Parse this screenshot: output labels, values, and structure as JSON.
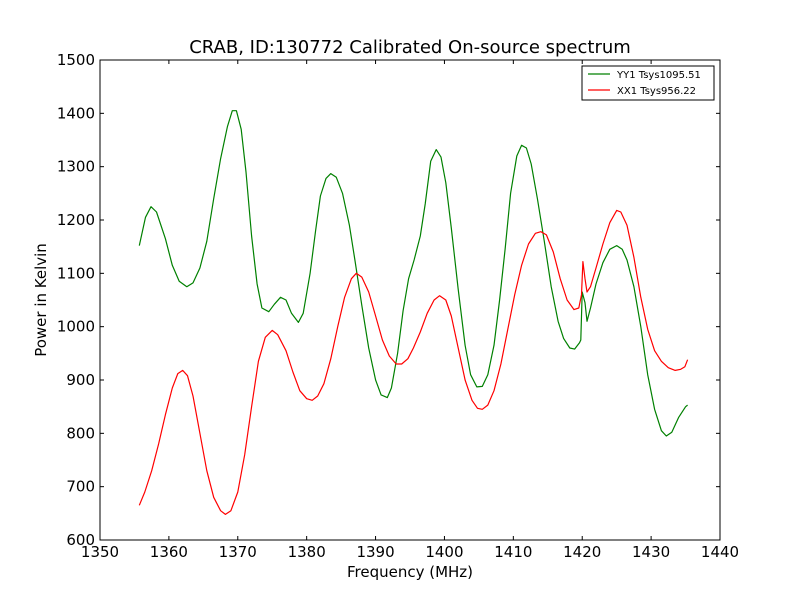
{
  "chart_data": {
    "type": "line",
    "title": "CRAB, ID:130772 Calibrated On-source spectrum",
    "xlabel": "Frequency (MHz)",
    "ylabel": "Power in Kelvin",
    "xlim": [
      1350,
      1440
    ],
    "ylim": [
      600,
      1500
    ],
    "xticks": [
      1350,
      1360,
      1370,
      1380,
      1390,
      1400,
      1410,
      1420,
      1430,
      1440
    ],
    "yticks": [
      600,
      700,
      800,
      900,
      1000,
      1100,
      1200,
      1300,
      1400,
      1500
    ],
    "grid": false,
    "legend_position": "top-right",
    "series": [
      {
        "name": "YY1 Tsys1095.51",
        "color": "#008000",
        "points": [
          [
            1355.7,
            1152
          ],
          [
            1356.6,
            1205
          ],
          [
            1357.4,
            1225
          ],
          [
            1358.2,
            1215
          ],
          [
            1359.5,
            1165
          ],
          [
            1360.5,
            1115
          ],
          [
            1361.5,
            1085
          ],
          [
            1362.6,
            1075
          ],
          [
            1363.5,
            1082
          ],
          [
            1364.5,
            1110
          ],
          [
            1365.5,
            1160
          ],
          [
            1366.5,
            1240
          ],
          [
            1367.5,
            1315
          ],
          [
            1368.5,
            1375
          ],
          [
            1369.2,
            1405
          ],
          [
            1369.8,
            1405
          ],
          [
            1370.5,
            1370
          ],
          [
            1371.2,
            1290
          ],
          [
            1372.0,
            1170
          ],
          [
            1372.8,
            1080
          ],
          [
            1373.5,
            1035
          ],
          [
            1374.5,
            1028
          ],
          [
            1375.3,
            1042
          ],
          [
            1376.2,
            1055
          ],
          [
            1377.0,
            1050
          ],
          [
            1377.8,
            1025
          ],
          [
            1378.8,
            1008
          ],
          [
            1379.5,
            1025
          ],
          [
            1380.5,
            1100
          ],
          [
            1381.3,
            1180
          ],
          [
            1382.0,
            1245
          ],
          [
            1382.8,
            1278
          ],
          [
            1383.5,
            1287
          ],
          [
            1384.3,
            1280
          ],
          [
            1385.2,
            1250
          ],
          [
            1386.2,
            1190
          ],
          [
            1387.0,
            1125
          ],
          [
            1388.0,
            1040
          ],
          [
            1389.0,
            960
          ],
          [
            1390.0,
            900
          ],
          [
            1390.8,
            872
          ],
          [
            1391.7,
            867
          ],
          [
            1392.3,
            885
          ],
          [
            1393.2,
            950
          ],
          [
            1394.0,
            1030
          ],
          [
            1394.8,
            1090
          ],
          [
            1395.6,
            1125
          ],
          [
            1396.5,
            1170
          ],
          [
            1397.2,
            1230
          ],
          [
            1398.0,
            1310
          ],
          [
            1398.8,
            1332
          ],
          [
            1399.5,
            1318
          ],
          [
            1400.2,
            1270
          ],
          [
            1401.0,
            1185
          ],
          [
            1402.0,
            1070
          ],
          [
            1403.0,
            965
          ],
          [
            1403.8,
            910
          ],
          [
            1404.7,
            887
          ],
          [
            1405.5,
            888
          ],
          [
            1406.3,
            910
          ],
          [
            1407.2,
            965
          ],
          [
            1408.0,
            1050
          ],
          [
            1408.8,
            1145
          ],
          [
            1409.6,
            1250
          ],
          [
            1410.5,
            1320
          ],
          [
            1411.2,
            1340
          ],
          [
            1411.9,
            1335
          ],
          [
            1412.6,
            1305
          ],
          [
            1413.5,
            1240
          ],
          [
            1414.5,
            1160
          ],
          [
            1415.5,
            1075
          ],
          [
            1416.5,
            1010
          ],
          [
            1417.3,
            978
          ],
          [
            1418.2,
            960
          ],
          [
            1418.9,
            958
          ],
          [
            1419.6,
            970
          ],
          [
            1419.8,
            975
          ],
          [
            1420.0,
            1065
          ],
          [
            1420.4,
            1045
          ],
          [
            1420.7,
            1010
          ],
          [
            1421.2,
            1035
          ],
          [
            1422.0,
            1080
          ],
          [
            1423.0,
            1120
          ],
          [
            1424.0,
            1145
          ],
          [
            1425.0,
            1152
          ],
          [
            1425.8,
            1145
          ],
          [
            1426.5,
            1125
          ],
          [
            1427.5,
            1075
          ],
          [
            1428.5,
            1000
          ],
          [
            1429.5,
            910
          ],
          [
            1430.5,
            845
          ],
          [
            1431.5,
            805
          ],
          [
            1432.2,
            795
          ],
          [
            1433.0,
            802
          ],
          [
            1434.0,
            830
          ],
          [
            1435.0,
            850
          ],
          [
            1435.3,
            853
          ]
        ]
      },
      {
        "name": "XX1 Tsys956.22",
        "color": "#ff0000",
        "points": [
          [
            1355.7,
            665
          ],
          [
            1356.5,
            690
          ],
          [
            1357.5,
            730
          ],
          [
            1358.5,
            780
          ],
          [
            1359.5,
            835
          ],
          [
            1360.5,
            885
          ],
          [
            1361.3,
            912
          ],
          [
            1362.0,
            918
          ],
          [
            1362.7,
            908
          ],
          [
            1363.5,
            870
          ],
          [
            1364.5,
            800
          ],
          [
            1365.5,
            730
          ],
          [
            1366.5,
            680
          ],
          [
            1367.5,
            655
          ],
          [
            1368.2,
            648
          ],
          [
            1369.0,
            655
          ],
          [
            1370.0,
            690
          ],
          [
            1371.0,
            760
          ],
          [
            1372.0,
            850
          ],
          [
            1373.0,
            935
          ],
          [
            1374.0,
            980
          ],
          [
            1375.0,
            993
          ],
          [
            1375.8,
            985
          ],
          [
            1377.0,
            955
          ],
          [
            1378.0,
            915
          ],
          [
            1379.0,
            880
          ],
          [
            1380.0,
            865
          ],
          [
            1380.8,
            862
          ],
          [
            1381.6,
            870
          ],
          [
            1382.5,
            893
          ],
          [
            1383.5,
            940
          ],
          [
            1384.5,
            1000
          ],
          [
            1385.5,
            1055
          ],
          [
            1386.5,
            1090
          ],
          [
            1387.2,
            1100
          ],
          [
            1388.0,
            1093
          ],
          [
            1389.0,
            1065
          ],
          [
            1390.0,
            1020
          ],
          [
            1391.0,
            975
          ],
          [
            1392.0,
            945
          ],
          [
            1393.0,
            930
          ],
          [
            1393.8,
            930
          ],
          [
            1394.7,
            940
          ],
          [
            1395.5,
            960
          ],
          [
            1396.5,
            990
          ],
          [
            1397.5,
            1025
          ],
          [
            1398.5,
            1050
          ],
          [
            1399.3,
            1058
          ],
          [
            1400.2,
            1050
          ],
          [
            1401.0,
            1020
          ],
          [
            1402.0,
            960
          ],
          [
            1403.0,
            900
          ],
          [
            1404.0,
            862
          ],
          [
            1404.8,
            847
          ],
          [
            1405.5,
            845
          ],
          [
            1406.3,
            853
          ],
          [
            1407.2,
            880
          ],
          [
            1408.2,
            930
          ],
          [
            1409.2,
            995
          ],
          [
            1410.2,
            1060
          ],
          [
            1411.2,
            1115
          ],
          [
            1412.2,
            1155
          ],
          [
            1413.2,
            1175
          ],
          [
            1414.0,
            1178
          ],
          [
            1414.8,
            1172
          ],
          [
            1415.8,
            1140
          ],
          [
            1416.8,
            1090
          ],
          [
            1417.8,
            1050
          ],
          [
            1418.8,
            1032
          ],
          [
            1419.5,
            1035
          ],
          [
            1419.9,
            1060
          ],
          [
            1420.1,
            1122
          ],
          [
            1420.4,
            1090
          ],
          [
            1420.7,
            1065
          ],
          [
            1421.2,
            1075
          ],
          [
            1422.0,
            1110
          ],
          [
            1423.0,
            1155
          ],
          [
            1424.0,
            1195
          ],
          [
            1425.0,
            1218
          ],
          [
            1425.6,
            1215
          ],
          [
            1426.5,
            1190
          ],
          [
            1427.5,
            1130
          ],
          [
            1428.5,
            1055
          ],
          [
            1429.5,
            995
          ],
          [
            1430.5,
            955
          ],
          [
            1431.5,
            935
          ],
          [
            1432.5,
            923
          ],
          [
            1433.5,
            918
          ],
          [
            1434.3,
            920
          ],
          [
            1434.9,
            925
          ],
          [
            1435.3,
            938
          ]
        ]
      }
    ]
  }
}
